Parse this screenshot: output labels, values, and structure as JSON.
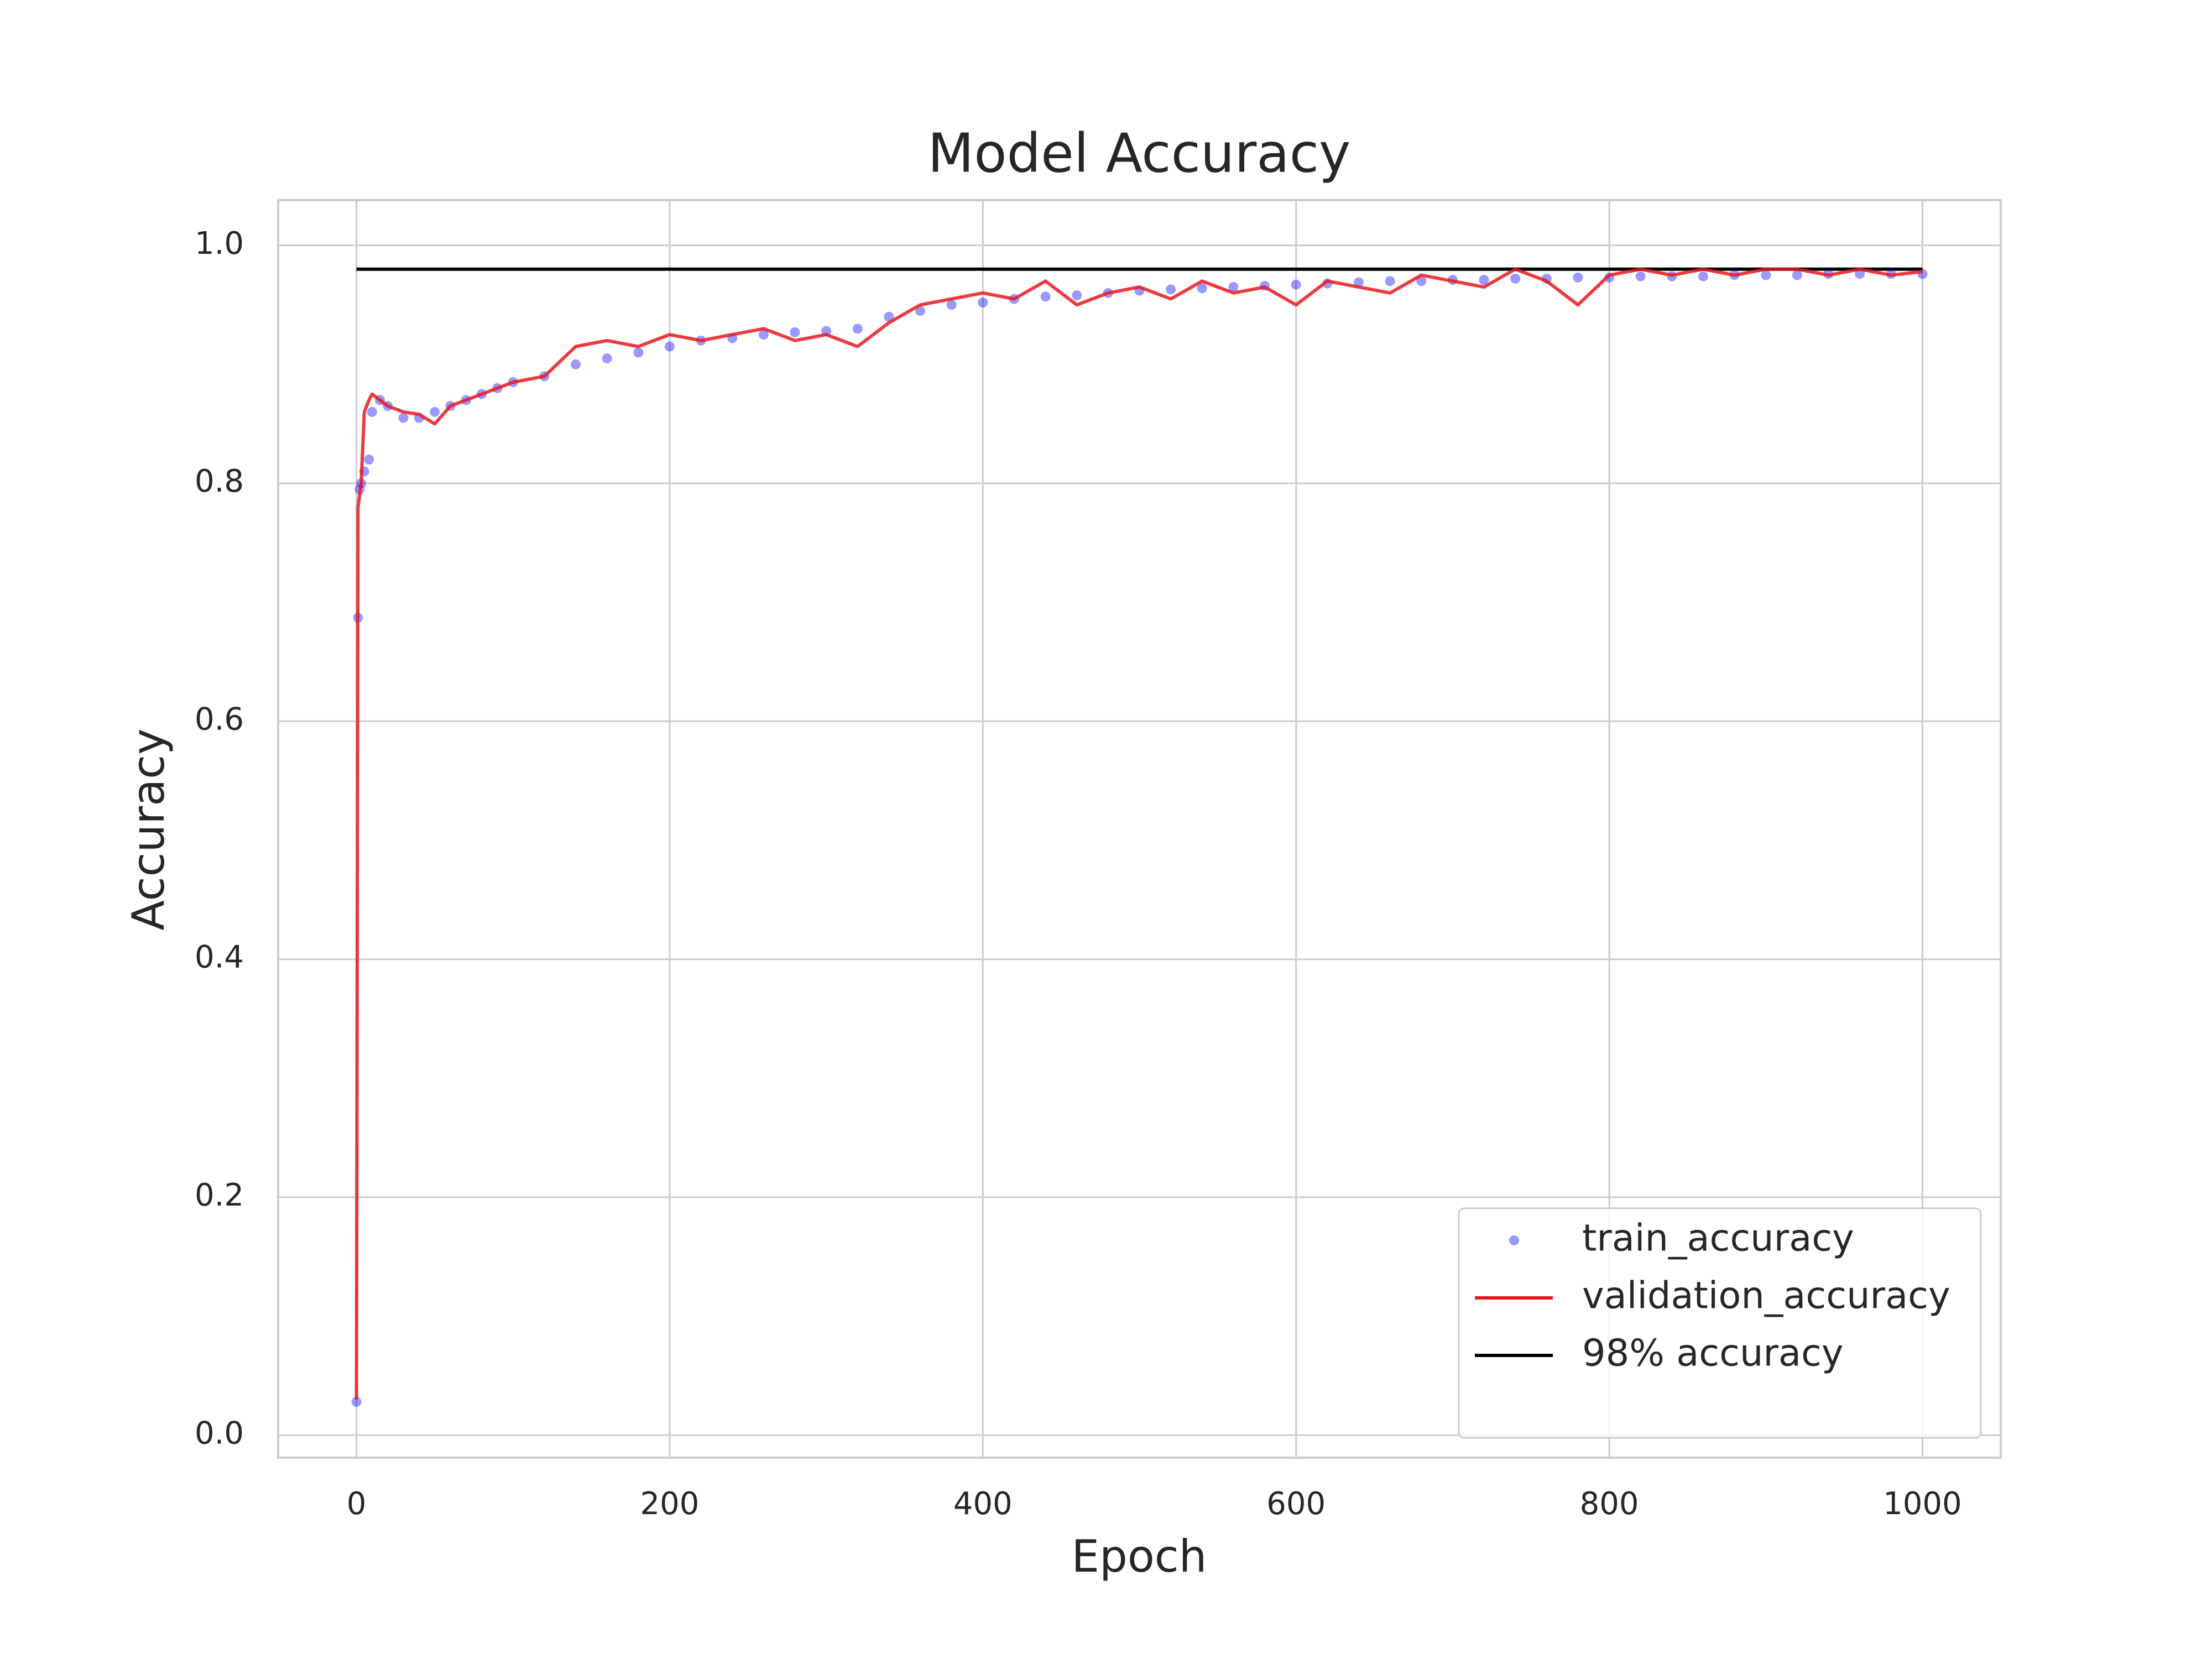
{
  "chart_data": {
    "type": "line",
    "title": "Model Accuracy",
    "x_label": "Epoch",
    "y_label": "Accuracy",
    "x": [
      0,
      1,
      2,
      3,
      5,
      8,
      10,
      15,
      20,
      30,
      40,
      50,
      60,
      70,
      80,
      90,
      100,
      120,
      140,
      160,
      180,
      200,
      220,
      240,
      260,
      280,
      300,
      320,
      340,
      360,
      380,
      400,
      420,
      440,
      460,
      480,
      500,
      520,
      540,
      560,
      580,
      600,
      620,
      640,
      660,
      680,
      700,
      720,
      740,
      760,
      780,
      800,
      820,
      840,
      860,
      880,
      900,
      920,
      940,
      960,
      980,
      1000
    ],
    "series": [
      {
        "name": "train_accuracy",
        "color": "#0000ff",
        "style": "dots",
        "values": [
          0.028,
          0.687,
          0.795,
          0.8,
          0.81,
          0.82,
          0.86,
          0.87,
          0.865,
          0.855,
          0.855,
          0.86,
          0.865,
          0.87,
          0.875,
          0.88,
          0.885,
          0.89,
          0.9,
          0.905,
          0.91,
          0.915,
          0.92,
          0.922,
          0.925,
          0.927,
          0.928,
          0.93,
          0.94,
          0.945,
          0.95,
          0.952,
          0.955,
          0.957,
          0.958,
          0.96,
          0.962,
          0.963,
          0.964,
          0.965,
          0.966,
          0.967,
          0.968,
          0.969,
          0.97,
          0.97,
          0.971,
          0.971,
          0.972,
          0.972,
          0.973,
          0.973,
          0.974,
          0.974,
          0.974,
          0.975,
          0.975,
          0.975,
          0.976,
          0.976,
          0.976,
          0.976
        ]
      },
      {
        "name": "validation_accuracy",
        "color": "#e8191e",
        "style": "line",
        "values": [
          0.03,
          0.78,
          0.79,
          0.8,
          0.86,
          0.87,
          0.875,
          0.87,
          0.865,
          0.86,
          0.858,
          0.85,
          0.865,
          0.87,
          0.875,
          0.88,
          0.885,
          0.89,
          0.915,
          0.92,
          0.915,
          0.925,
          0.92,
          0.925,
          0.93,
          0.92,
          0.925,
          0.915,
          0.935,
          0.95,
          0.955,
          0.96,
          0.955,
          0.97,
          0.95,
          0.96,
          0.965,
          0.955,
          0.97,
          0.96,
          0.965,
          0.95,
          0.97,
          0.965,
          0.96,
          0.975,
          0.97,
          0.965,
          0.98,
          0.97,
          0.95,
          0.975,
          0.98,
          0.975,
          0.98,
          0.975,
          0.98,
          0.98,
          0.975,
          0.98,
          0.975,
          0.978
        ]
      }
    ],
    "hlines": [
      {
        "name": "98% accuracy",
        "color": "#000000",
        "value": 0.98,
        "xmin": 0,
        "xmax": 1000
      }
    ],
    "xlim": [
      -50,
      1050
    ],
    "ylim": [
      -0.019,
      1.038
    ],
    "xticks": [
      0,
      200,
      400,
      600,
      800,
      1000
    ],
    "yticks": [
      {
        "value": 0,
        "label": "0.0"
      },
      0.2,
      0.4,
      0.6,
      0.8,
      {
        "value": 1,
        "label": "1.0"
      }
    ],
    "grid": true,
    "legend": "lower right"
  }
}
